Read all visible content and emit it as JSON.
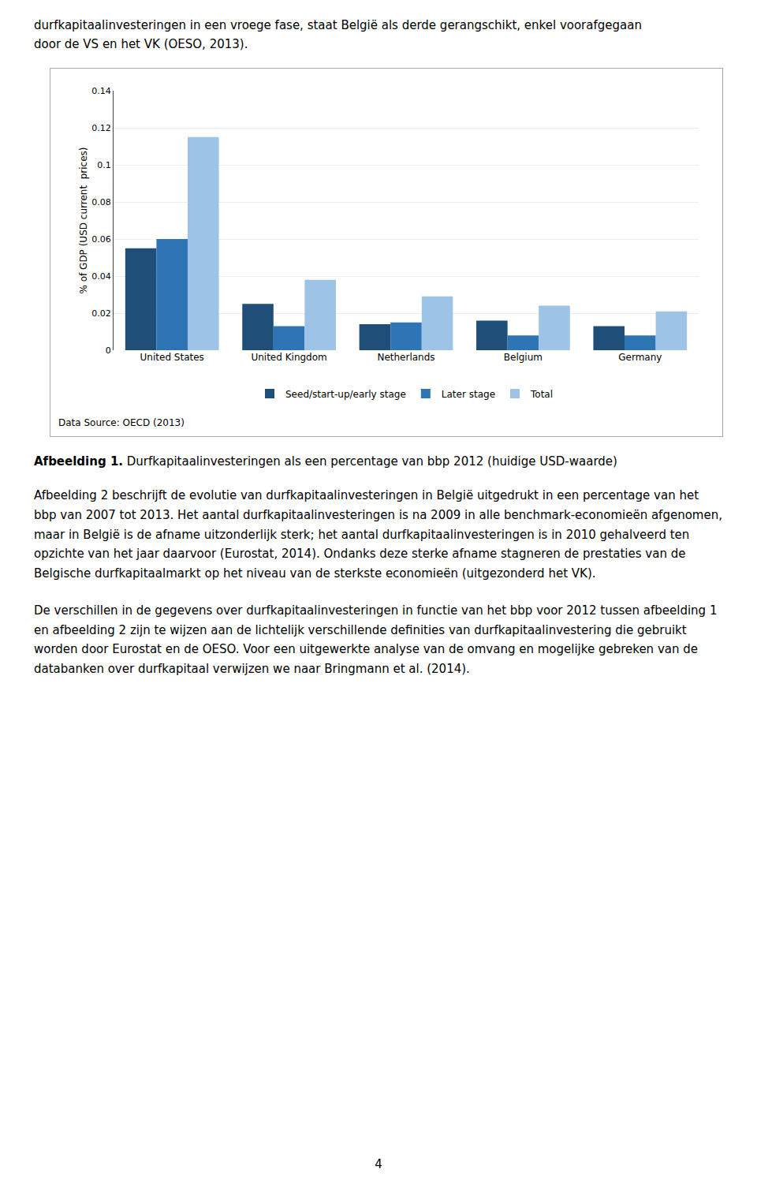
{
  "chart_data": {
    "type": "bar",
    "categories": [
      "United States",
      "United Kingdom",
      "Netherlands",
      "Belgium",
      "Germany"
    ],
    "series": [
      {
        "name": "Seed/start-up/early stage",
        "color": "#1F4E79",
        "values": [
          0.055,
          0.025,
          0.014,
          0.016,
          0.013
        ]
      },
      {
        "name": "Later stage",
        "color": "#2E75B6",
        "values": [
          0.06,
          0.013,
          0.015,
          0.008,
          0.008
        ]
      },
      {
        "name": "Total",
        "color": "#9DC3E6",
        "values": [
          0.115,
          0.038,
          0.029,
          0.024,
          0.021
        ]
      }
    ],
    "ylabel": "% of GDP (USD current  prices)",
    "ylim": [
      0,
      0.14
    ],
    "yticks": [
      0,
      0.02,
      0.04,
      0.06,
      0.08,
      0.1,
      0.12,
      0.14
    ],
    "grid": true,
    "legend": "bottom",
    "annotations": [
      "Data Source: OECD (2013)"
    ]
  },
  "top_text": "durfkapitaalinvesteringen in een vroege fase, staat België als derde gerangschikt, enkel voorafgegaan\ndoor de VS en het VK (OESO, 2013).",
  "caption_bold": "Afbeelding 1.",
  "caption_rest": " Durfkapitaalinvesteringen als een percentage van bbp 2012 (huidige USD-waarde)",
  "paragraphs": [
    "Afbeelding 2 beschrijft de evolutie van durfkapitaalinvesteringen in België uitgedrukt in een percentage van het bbp van 2007 tot 2013. Het aantal durfkapitaalinvesteringen is na 2009 in alle benchmark-economieën afgenomen, maar in België is de afname uitzonderlijk sterk; het aantal durfkapitaalinvesteringen is in 2010 gehalveerd ten opzichte van het jaar daarvoor (Eurostat, 2014). Ondanks deze sterke afname stagneren de prestaties van de Belgische durfkapitaalmarkt op het niveau van de sterkste economieën (uitgezonderd het VK).",
    "De verschillen in de gegevens over durfkapitaalinvesteringen in functie van het bbp voor 2012 tussen afbeelding 1 en afbeelding 2 zijn te wijzen aan de lichtelijk verschillende definities van durfkapitaalinvestering die gebruikt worden door Eurostat en de OESO. Voor een uitgewerkte analyse van de omvang en mogelijke gebreken van de databanken over durfkapitaal verwijzen we naar Bringmann et al. (2014)."
  ],
  "page_number": "4"
}
